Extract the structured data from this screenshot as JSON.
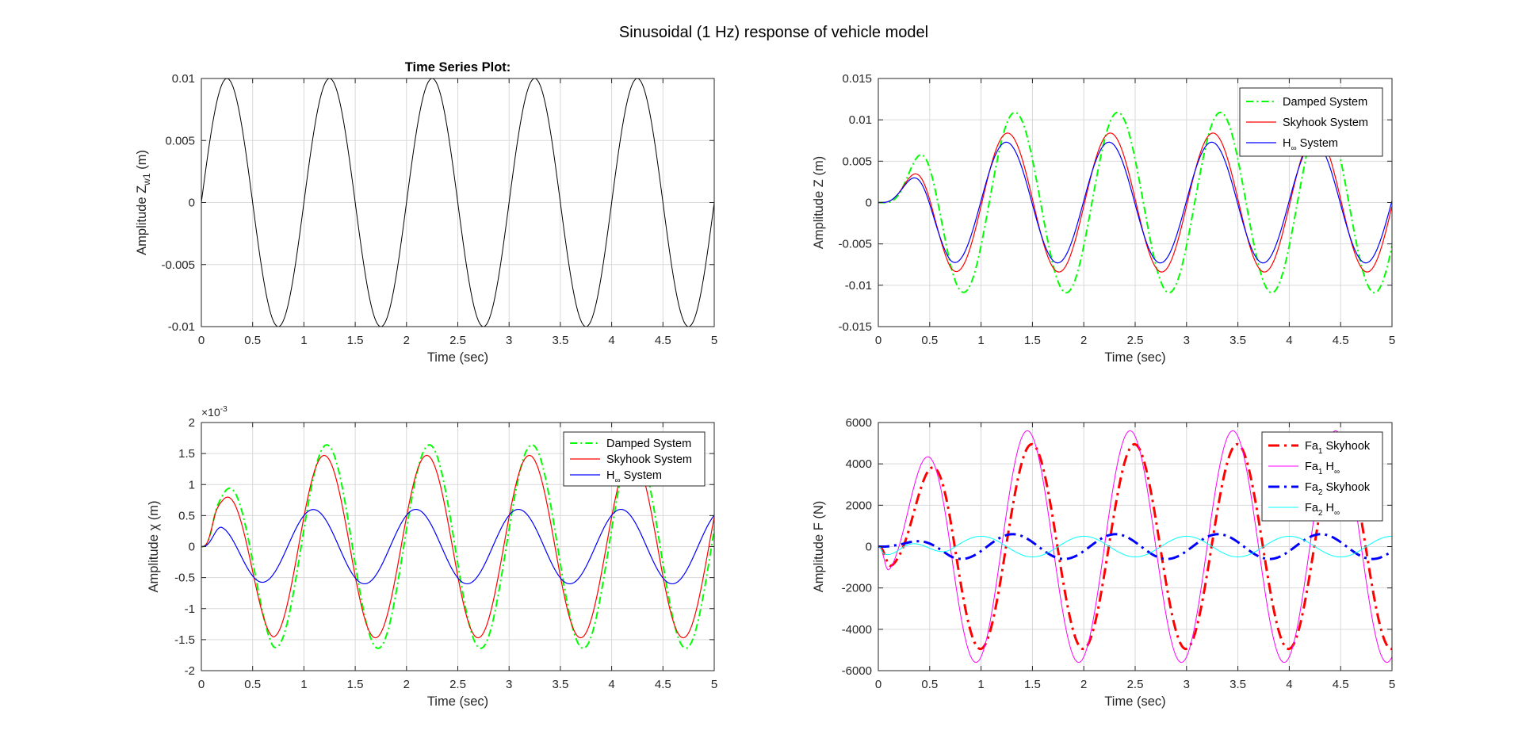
{
  "figure": {
    "title": "Sinusoidal (1 Hz) response of vehicle model"
  },
  "colors": {
    "grid": "#d9d9d9",
    "axis": "#262626",
    "text": "#262626",
    "black": "#000000",
    "green": "#00ff00",
    "red": "#ff0000",
    "blue": "#0000ff",
    "magenta": "#ff00ff",
    "cyan": "#00ffff"
  },
  "chart_data": [
    {
      "type": "line",
      "title": "Time Series Plot:",
      "xlabel": "Time (sec)",
      "ylabel": "Amplitude Z_{w1} (m)",
      "xlim": [
        0,
        5
      ],
      "ylim": [
        -0.01,
        0.01
      ],
      "xticks": [
        0,
        0.5,
        1,
        1.5,
        2,
        2.5,
        3,
        3.5,
        4,
        4.5,
        5
      ],
      "xtick_labels": [
        "0",
        "0.5",
        "1",
        "1.5",
        "2",
        "2.5",
        "3",
        "3.5",
        "4",
        "4.5",
        "5"
      ],
      "yticks": [
        -0.01,
        -0.005,
        0,
        0.005,
        0.01
      ],
      "ytick_labels": [
        "-0.01",
        "-0.005",
        "0",
        "0.005",
        "0.01"
      ],
      "grid": true,
      "legend": null,
      "series": [
        {
          "color": "black",
          "style": "solid",
          "width": 1,
          "model": {
            "kind": "sine",
            "amp": 0.01,
            "freq": 1,
            "phase": 0
          }
        }
      ]
    },
    {
      "type": "line",
      "title": "",
      "xlabel": "Time (sec)",
      "ylabel": "Amplitude Z (m)",
      "xlim": [
        0,
        5
      ],
      "ylim": [
        -0.015,
        0.015
      ],
      "xticks": [
        0,
        0.5,
        1,
        1.5,
        2,
        2.5,
        3,
        3.5,
        4,
        4.5,
        5
      ],
      "xtick_labels": [
        "0",
        "0.5",
        "1",
        "1.5",
        "2",
        "2.5",
        "3",
        "3.5",
        "4",
        "4.5",
        "5"
      ],
      "yticks": [
        -0.015,
        -0.01,
        -0.005,
        0,
        0.005,
        0.01,
        0.015
      ],
      "ytick_labels": [
        "-0.015",
        "-0.01",
        "-0.005",
        "0",
        "0.005",
        "0.01",
        "0.015"
      ],
      "grid": true,
      "legend": "top-right",
      "series": [
        {
          "name": "Damped System",
          "color": "green",
          "style": "dashdot",
          "width": 2,
          "model": {
            "kind": "response",
            "amp": 0.0109,
            "freq": 1,
            "phase": 0.5,
            "tau": 0.15,
            "delay": 0.55,
            "first_peak": 0.0066
          }
        },
        {
          "name": "Skyhook System",
          "color": "red",
          "style": "solid",
          "width": 1.2,
          "model": {
            "kind": "response",
            "amp": 0.0084,
            "freq": 1,
            "phase": 0.05,
            "tau": 0.15,
            "delay": 0.55,
            "first_peak": 0.0057
          }
        },
        {
          "name": "H_{∞} System",
          "color": "blue",
          "style": "solid",
          "width": 1.2,
          "model": {
            "kind": "response",
            "amp": 0.0073,
            "freq": 1,
            "phase": -0.03,
            "tau": 0.15,
            "delay": 0.55,
            "first_peak": 0.0054
          }
        }
      ]
    },
    {
      "type": "line",
      "title": "",
      "xlabel": "Time (sec)",
      "ylabel": "Amplitude χ (m)",
      "exponent_label": "×10^{-3}",
      "xlim": [
        0,
        5
      ],
      "ylim": [
        -2,
        2
      ],
      "xticks": [
        0,
        0.5,
        1,
        1.5,
        2,
        2.5,
        3,
        3.5,
        4,
        4.5,
        5
      ],
      "xtick_labels": [
        "0",
        "0.5",
        "1",
        "1.5",
        "2",
        "2.5",
        "3",
        "3.5",
        "4",
        "4.5",
        "5"
      ],
      "yticks": [
        -2,
        -1.5,
        -1,
        -0.5,
        0,
        0.5,
        1,
        1.5,
        2
      ],
      "ytick_labels": [
        "-2",
        "-1.5",
        "-1",
        "-0.5",
        "0",
        "0.5",
        "1",
        "1.5",
        "2"
      ],
      "grid": true,
      "legend": "top-right",
      "series": [
        {
          "name": "Damped System",
          "color": "green",
          "style": "dashdot",
          "width": 2,
          "model": {
            "kind": "response",
            "amp": 1.64,
            "freq": 1,
            "phase": -0.17,
            "tau": 0.15,
            "delay": 0.15,
            "first_peak": 1.1
          }
        },
        {
          "name": "Skyhook System",
          "color": "red",
          "style": "solid",
          "width": 1.2,
          "model": {
            "kind": "response",
            "amp": 1.47,
            "freq": 1,
            "phase": -0.33,
            "tau": 0.15,
            "delay": 0.15,
            "first_peak": 0.99
          }
        },
        {
          "name": "H_{∞} System",
          "color": "blue",
          "style": "solid",
          "width": 1.2,
          "model": {
            "kind": "response",
            "amp": 0.6,
            "freq": 1,
            "phase": -1.0,
            "tau": 0.2,
            "delay": 0.2,
            "first_peak": 0.63
          }
        }
      ]
    },
    {
      "type": "line",
      "title": "",
      "xlabel": "Time (sec)",
      "ylabel": "Amplitude F (N)",
      "xlim": [
        0,
        5
      ],
      "ylim": [
        -6000,
        6000
      ],
      "xticks": [
        0,
        0.5,
        1,
        1.5,
        2,
        2.5,
        3,
        3.5,
        4,
        4.5,
        5
      ],
      "xtick_labels": [
        "0",
        "0.5",
        "1",
        "1.5",
        "2",
        "2.5",
        "3",
        "3.5",
        "4",
        "4.5",
        "5"
      ],
      "yticks": [
        -6000,
        -4000,
        -2000,
        0,
        2000,
        4000,
        6000
      ],
      "ytick_labels": [
        "-6000",
        "-4000",
        "-2000",
        "0",
        "2000",
        "4000",
        "6000"
      ],
      "grid": true,
      "legend": "top-right",
      "series": [
        {
          "name": "Fa_{1} Skyhook",
          "color": "red",
          "style": "dashdot",
          "width": 3,
          "model": {
            "kind": "response",
            "amp": 4950,
            "freq": 1,
            "phase": 1.53,
            "tau": 0.12,
            "delay": 0.12,
            "first_peak": 2100
          }
        },
        {
          "name": "Fa_{1} H_{∞}",
          "color": "magenta",
          "style": "solid",
          "width": 1,
          "model": {
            "kind": "response",
            "amp": 5600,
            "freq": 1,
            "phase": 1.26,
            "tau": 0.1,
            "delay": 0.1,
            "first_peak": 3000
          }
        },
        {
          "name": "Fa_{2} Skyhook",
          "color": "blue",
          "style": "dashdot",
          "width": 3,
          "model": {
            "kind": "response",
            "amp": 600,
            "freq": 1,
            "phase": 0.37,
            "tau": 0.15,
            "delay": 0.15,
            "first_peak": 150
          }
        },
        {
          "name": "Fa_{2} H_{∞}",
          "color": "cyan",
          "style": "solid",
          "width": 1,
          "model": {
            "kind": "response",
            "amp": 500,
            "freq": 1,
            "phase": -1.57,
            "tau": 0.05,
            "delay": 0.05,
            "first_peak": -550
          }
        }
      ]
    }
  ]
}
